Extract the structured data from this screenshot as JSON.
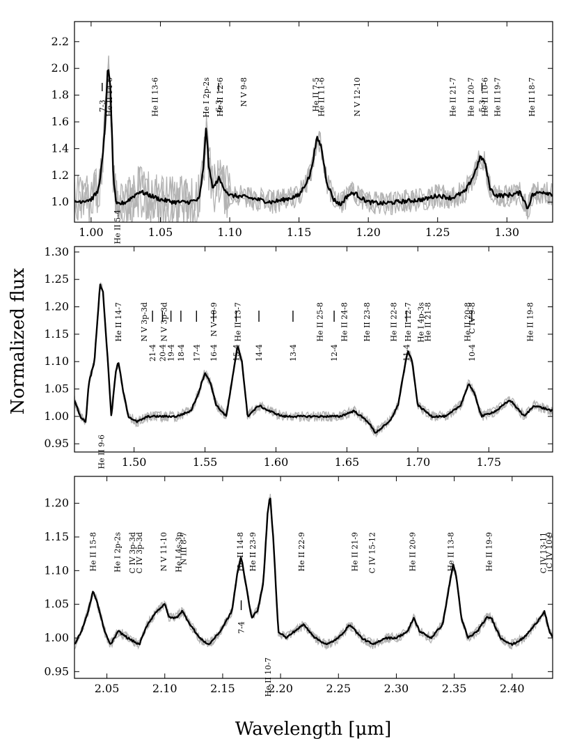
{
  "chart_data": {
    "type": "line",
    "xlabel": "Wavelength [μm]",
    "ylabel": "Normalized flux",
    "panels": [
      {
        "xlim": [
          0.988,
          1.333
        ],
        "ylim": [
          0.85,
          2.35
        ],
        "xticks": [
          1.0,
          1.05,
          1.1,
          1.15,
          1.2,
          1.25,
          1.3
        ],
        "yticks": [
          1.0,
          1.2,
          1.4,
          1.6,
          1.8,
          2.0,
          2.2
        ],
        "x_tick_labels": [
          "1.00",
          "1.05",
          "1.10",
          "1.15",
          "1.20",
          "1.25",
          "1.30"
        ],
        "y_tick_labels": [
          "1.0",
          "1.2",
          "1.4",
          "1.6",
          "1.8",
          "2.0",
          "2.2"
        ],
        "continuum": [
          [
            0.988,
            1.0
          ],
          [
            1.0,
            1.02
          ],
          [
            1.005,
            1.08
          ],
          [
            1.008,
            1.3
          ],
          [
            1.01,
            1.55
          ],
          [
            1.012,
            2.02
          ],
          [
            1.014,
            1.85
          ],
          [
            1.016,
            1.2
          ],
          [
            1.018,
            0.98
          ],
          [
            1.025,
            1.0
          ],
          [
            1.03,
            1.04
          ],
          [
            1.035,
            1.08
          ],
          [
            1.04,
            1.06
          ],
          [
            1.05,
            1.02
          ],
          [
            1.06,
            1.0
          ],
          [
            1.07,
            1.0
          ],
          [
            1.078,
            1.02
          ],
          [
            1.081,
            1.25
          ],
          [
            1.083,
            1.58
          ],
          [
            1.085,
            1.25
          ],
          [
            1.088,
            1.1
          ],
          [
            1.092,
            1.18
          ],
          [
            1.095,
            1.12
          ],
          [
            1.1,
            1.05
          ],
          [
            1.11,
            1.04
          ],
          [
            1.12,
            1.02
          ],
          [
            1.13,
            1.0
          ],
          [
            1.14,
            1.02
          ],
          [
            1.15,
            1.05
          ],
          [
            1.158,
            1.2
          ],
          [
            1.163,
            1.48
          ],
          [
            1.166,
            1.42
          ],
          [
            1.17,
            1.15
          ],
          [
            1.175,
            1.02
          ],
          [
            1.18,
            0.98
          ],
          [
            1.185,
            1.05
          ],
          [
            1.19,
            1.07
          ],
          [
            1.195,
            1.03
          ],
          [
            1.2,
            1.0
          ],
          [
            1.21,
            0.99
          ],
          [
            1.22,
            1.0
          ],
          [
            1.23,
            1.01
          ],
          [
            1.24,
            1.02
          ],
          [
            1.25,
            1.05
          ],
          [
            1.26,
            1.03
          ],
          [
            1.27,
            1.08
          ],
          [
            1.276,
            1.2
          ],
          [
            1.281,
            1.34
          ],
          [
            1.284,
            1.3
          ],
          [
            1.288,
            1.1
          ],
          [
            1.292,
            1.05
          ],
          [
            1.3,
            1.05
          ],
          [
            1.31,
            1.07
          ],
          [
            1.315,
            0.95
          ],
          [
            1.318,
            1.05
          ],
          [
            1.325,
            1.08
          ],
          [
            1.333,
            1.06
          ]
        ],
        "lines": [
          {
            "x": 1.013,
            "text": "He II 14-6",
            "row": "top"
          },
          {
            "x": 1.046,
            "text": "He II 13-6",
            "row": "top"
          },
          {
            "x": 1.083,
            "text": "He I 2p-2s",
            "row": "top"
          },
          {
            "x": 1.093,
            "text": "He II 12-6",
            "row": "top"
          },
          {
            "x": 1.11,
            "text": "N V 9-8",
            "row": "top"
          },
          {
            "x": 1.162,
            "text": "He II 7-5",
            "row": "top2"
          },
          {
            "x": 1.166,
            "text": "He II 11-6",
            "row": "top"
          },
          {
            "x": 1.192,
            "text": "N V 12-10",
            "row": "top"
          },
          {
            "x": 1.261,
            "text": "He II 21-7",
            "row": "top"
          },
          {
            "x": 1.274,
            "text": "He II 20-7",
            "row": "top"
          },
          {
            "x": 1.284,
            "text": "He II 10-6",
            "row": "top"
          },
          {
            "x": 1.293,
            "text": "He II 19-7",
            "row": "top"
          },
          {
            "x": 1.318,
            "text": "He II 18-7",
            "row": "top"
          },
          {
            "x": 1.019,
            "text": "He II 5-4",
            "row": "low"
          }
        ],
        "markers": [
          {
            "x": 1.008,
            "text": "7-3"
          },
          {
            "x": 1.092,
            "text": "6-3"
          },
          {
            "x": 1.282,
            "text": "5-3"
          }
        ]
      },
      {
        "xlim": [
          1.458,
          1.795
        ],
        "ylim": [
          0.935,
          1.31
        ],
        "xticks": [
          1.5,
          1.55,
          1.6,
          1.65,
          1.7,
          1.75
        ],
        "yticks": [
          0.95,
          1.0,
          1.05,
          1.1,
          1.15,
          1.2,
          1.25,
          1.3
        ],
        "x_tick_labels": [
          "1.50",
          "1.55",
          "1.60",
          "1.65",
          "1.70",
          "1.75"
        ],
        "y_tick_labels": [
          "0.95",
          "1.00",
          "1.05",
          "1.10",
          "1.15",
          "1.20",
          "1.25",
          "1.30"
        ],
        "continuum": [
          [
            1.458,
            1.03
          ],
          [
            1.462,
            1.0
          ],
          [
            1.466,
            0.99
          ],
          [
            1.468,
            1.06
          ],
          [
            1.472,
            1.1
          ],
          [
            1.476,
            1.24
          ],
          [
            1.478,
            1.23
          ],
          [
            1.481,
            1.12
          ],
          [
            1.484,
            1.0
          ],
          [
            1.487,
            1.08
          ],
          [
            1.489,
            1.1
          ],
          [
            1.492,
            1.05
          ],
          [
            1.496,
            1.0
          ],
          [
            1.502,
            0.99
          ],
          [
            1.51,
            1.0
          ],
          [
            1.52,
            1.0
          ],
          [
            1.53,
            1.0
          ],
          [
            1.54,
            1.01
          ],
          [
            1.545,
            1.04
          ],
          [
            1.55,
            1.08
          ],
          [
            1.554,
            1.06
          ],
          [
            1.558,
            1.02
          ],
          [
            1.565,
            1.0
          ],
          [
            1.57,
            1.08
          ],
          [
            1.573,
            1.13
          ],
          [
            1.576,
            1.1
          ],
          [
            1.58,
            1.0
          ],
          [
            1.588,
            1.02
          ],
          [
            1.595,
            1.01
          ],
          [
            1.605,
            1.0
          ],
          [
            1.615,
            1.0
          ],
          [
            1.625,
            1.0
          ],
          [
            1.635,
            1.0
          ],
          [
            1.645,
            1.0
          ],
          [
            1.655,
            1.01
          ],
          [
            1.665,
            0.99
          ],
          [
            1.67,
            0.97
          ],
          [
            1.68,
            0.99
          ],
          [
            1.686,
            1.02
          ],
          [
            1.69,
            1.08
          ],
          [
            1.693,
            1.12
          ],
          [
            1.696,
            1.1
          ],
          [
            1.7,
            1.02
          ],
          [
            1.71,
            1.0
          ],
          [
            1.72,
            1.0
          ],
          [
            1.73,
            1.02
          ],
          [
            1.736,
            1.06
          ],
          [
            1.74,
            1.04
          ],
          [
            1.745,
            1.0
          ],
          [
            1.755,
            1.01
          ],
          [
            1.765,
            1.03
          ],
          [
            1.775,
            1.0
          ],
          [
            1.782,
            1.02
          ],
          [
            1.795,
            1.01
          ]
        ],
        "lines": [
          {
            "x": 1.489,
            "text": "He II 14-7",
            "row": "top"
          },
          {
            "x": 1.507,
            "text": "N V 3p-3d",
            "row": "top"
          },
          {
            "x": 1.521,
            "text": "N V 3p-3d",
            "row": "top"
          },
          {
            "x": 1.556,
            "text": "N V 10-9",
            "row": "top"
          },
          {
            "x": 1.573,
            "text": "He II 13-7",
            "row": "top"
          },
          {
            "x": 1.631,
            "text": "He II 25-8",
            "row": "top"
          },
          {
            "x": 1.648,
            "text": "He II 24-8",
            "row": "top"
          },
          {
            "x": 1.664,
            "text": "He II 23-8",
            "row": "top"
          },
          {
            "x": 1.683,
            "text": "He II 22-8",
            "row": "top"
          },
          {
            "x": 1.693,
            "text": "He II 12-7",
            "row": "top"
          },
          {
            "x": 1.702,
            "text": "He I 4p-3s",
            "row": "top"
          },
          {
            "x": 1.707,
            "text": "He II 21-8",
            "row": "top"
          },
          {
            "x": 1.735,
            "text": "He II 20-8",
            "row": "top"
          },
          {
            "x": 1.738,
            "text": "C IV 9-8",
            "row": "top"
          },
          {
            "x": 1.779,
            "text": "He II 19-8",
            "row": "top"
          },
          {
            "x": 1.477,
            "text": "He II 9-6",
            "row": "low"
          }
        ],
        "markers": [
          {
            "x": 1.513,
            "text": "21-4"
          },
          {
            "x": 1.52,
            "text": "20-4"
          },
          {
            "x": 1.526,
            "text": "19-4"
          },
          {
            "x": 1.533,
            "text": "18-4"
          },
          {
            "x": 1.544,
            "text": "17-4"
          },
          {
            "x": 1.556,
            "text": "16-4"
          },
          {
            "x": 1.572,
            "text": "15-4"
          },
          {
            "x": 1.588,
            "text": "14-4"
          },
          {
            "x": 1.612,
            "text": "13-4"
          },
          {
            "x": 1.641,
            "text": "12-4"
          },
          {
            "x": 1.692,
            "text": "11-4"
          },
          {
            "x": 1.738,
            "text": "10-4"
          }
        ]
      },
      {
        "xlim": [
          2.022,
          2.435
        ],
        "ylim": [
          0.94,
          1.24
        ],
        "xticks": [
          2.05,
          2.1,
          2.15,
          2.2,
          2.25,
          2.3,
          2.35,
          2.4
        ],
        "yticks": [
          0.95,
          1.0,
          1.05,
          1.1,
          1.15,
          1.2
        ],
        "x_tick_labels": [
          "2.05",
          "2.10",
          "2.15",
          "2.20",
          "2.25",
          "2.30",
          "2.35",
          "2.40"
        ],
        "y_tick_labels": [
          "0.95",
          "1.00",
          "1.05",
          "1.10",
          "1.15",
          "1.20"
        ],
        "continuum": [
          [
            2.022,
            0.99
          ],
          [
            2.028,
            1.01
          ],
          [
            2.034,
            1.04
          ],
          [
            2.038,
            1.07
          ],
          [
            2.042,
            1.05
          ],
          [
            2.048,
            1.01
          ],
          [
            2.053,
            0.99
          ],
          [
            2.06,
            1.01
          ],
          [
            2.068,
            1.0
          ],
          [
            2.078,
            0.99
          ],
          [
            2.085,
            1.02
          ],
          [
            2.093,
            1.04
          ],
          [
            2.1,
            1.05
          ],
          [
            2.104,
            1.03
          ],
          [
            2.11,
            1.03
          ],
          [
            2.115,
            1.04
          ],
          [
            2.122,
            1.02
          ],
          [
            2.13,
            1.0
          ],
          [
            2.138,
            0.99
          ],
          [
            2.148,
            1.01
          ],
          [
            2.158,
            1.04
          ],
          [
            2.163,
            1.1
          ],
          [
            2.166,
            1.12
          ],
          [
            2.17,
            1.08
          ],
          [
            2.175,
            1.03
          ],
          [
            2.18,
            1.04
          ],
          [
            2.185,
            1.08
          ],
          [
            2.189,
            1.19
          ],
          [
            2.191,
            1.21
          ],
          [
            2.194,
            1.14
          ],
          [
            2.198,
            1.01
          ],
          [
            2.205,
            1.0
          ],
          [
            2.212,
            1.01
          ],
          [
            2.22,
            1.02
          ],
          [
            2.23,
            1.0
          ],
          [
            2.24,
            0.99
          ],
          [
            2.25,
            1.0
          ],
          [
            2.26,
            1.02
          ],
          [
            2.27,
            1.0
          ],
          [
            2.28,
            0.99
          ],
          [
            2.29,
            1.0
          ],
          [
            2.3,
            1.0
          ],
          [
            2.31,
            1.01
          ],
          [
            2.315,
            1.03
          ],
          [
            2.32,
            1.01
          ],
          [
            2.33,
            1.0
          ],
          [
            2.34,
            1.02
          ],
          [
            2.345,
            1.07
          ],
          [
            2.349,
            1.11
          ],
          [
            2.352,
            1.09
          ],
          [
            2.356,
            1.03
          ],
          [
            2.362,
            1.0
          ],
          [
            2.37,
            1.01
          ],
          [
            2.378,
            1.03
          ],
          [
            2.382,
            1.03
          ],
          [
            2.39,
            1.0
          ],
          [
            2.4,
            0.99
          ],
          [
            2.41,
            1.0
          ],
          [
            2.42,
            1.02
          ],
          [
            2.428,
            1.04
          ],
          [
            2.432,
            1.01
          ],
          [
            2.435,
            1.0
          ]
        ],
        "lines": [
          {
            "x": 2.038,
            "text": "He II 15-8",
            "row": "top"
          },
          {
            "x": 2.059,
            "text": "He I 2p-2s",
            "row": "top"
          },
          {
            "x": 2.072,
            "text": "C IV 3p-3d",
            "row": "top"
          },
          {
            "x": 2.078,
            "text": "C IV 3p-3d",
            "row": "top"
          },
          {
            "x": 2.099,
            "text": "N V 11-10",
            "row": "top"
          },
          {
            "x": 2.112,
            "text": "He I 4s-3p",
            "row": "top"
          },
          {
            "x": 2.116,
            "text": "N III 8-7",
            "row": "top"
          },
          {
            "x": 2.165,
            "text": "He II 14-8",
            "row": "top"
          },
          {
            "x": 2.176,
            "text": "He II 23-9",
            "row": "top"
          },
          {
            "x": 2.218,
            "text": "He II 22-9",
            "row": "top"
          },
          {
            "x": 2.264,
            "text": "He II 21-9",
            "row": "top"
          },
          {
            "x": 2.279,
            "text": "C IV 15-12",
            "row": "top"
          },
          {
            "x": 2.314,
            "text": "He II 20-9",
            "row": "top"
          },
          {
            "x": 2.347,
            "text": "He II 13-8",
            "row": "top"
          },
          {
            "x": 2.38,
            "text": "He II 19-9",
            "row": "top"
          },
          {
            "x": 2.427,
            "text": "C IV 13-11",
            "row": "top"
          },
          {
            "x": 2.432,
            "text": "C IV 10-9",
            "row": "top"
          },
          {
            "x": 2.189,
            "text": "He II 10-7",
            "row": "low"
          }
        ],
        "markers": [
          {
            "x": 2.166,
            "text": "7-4"
          }
        ]
      }
    ]
  }
}
